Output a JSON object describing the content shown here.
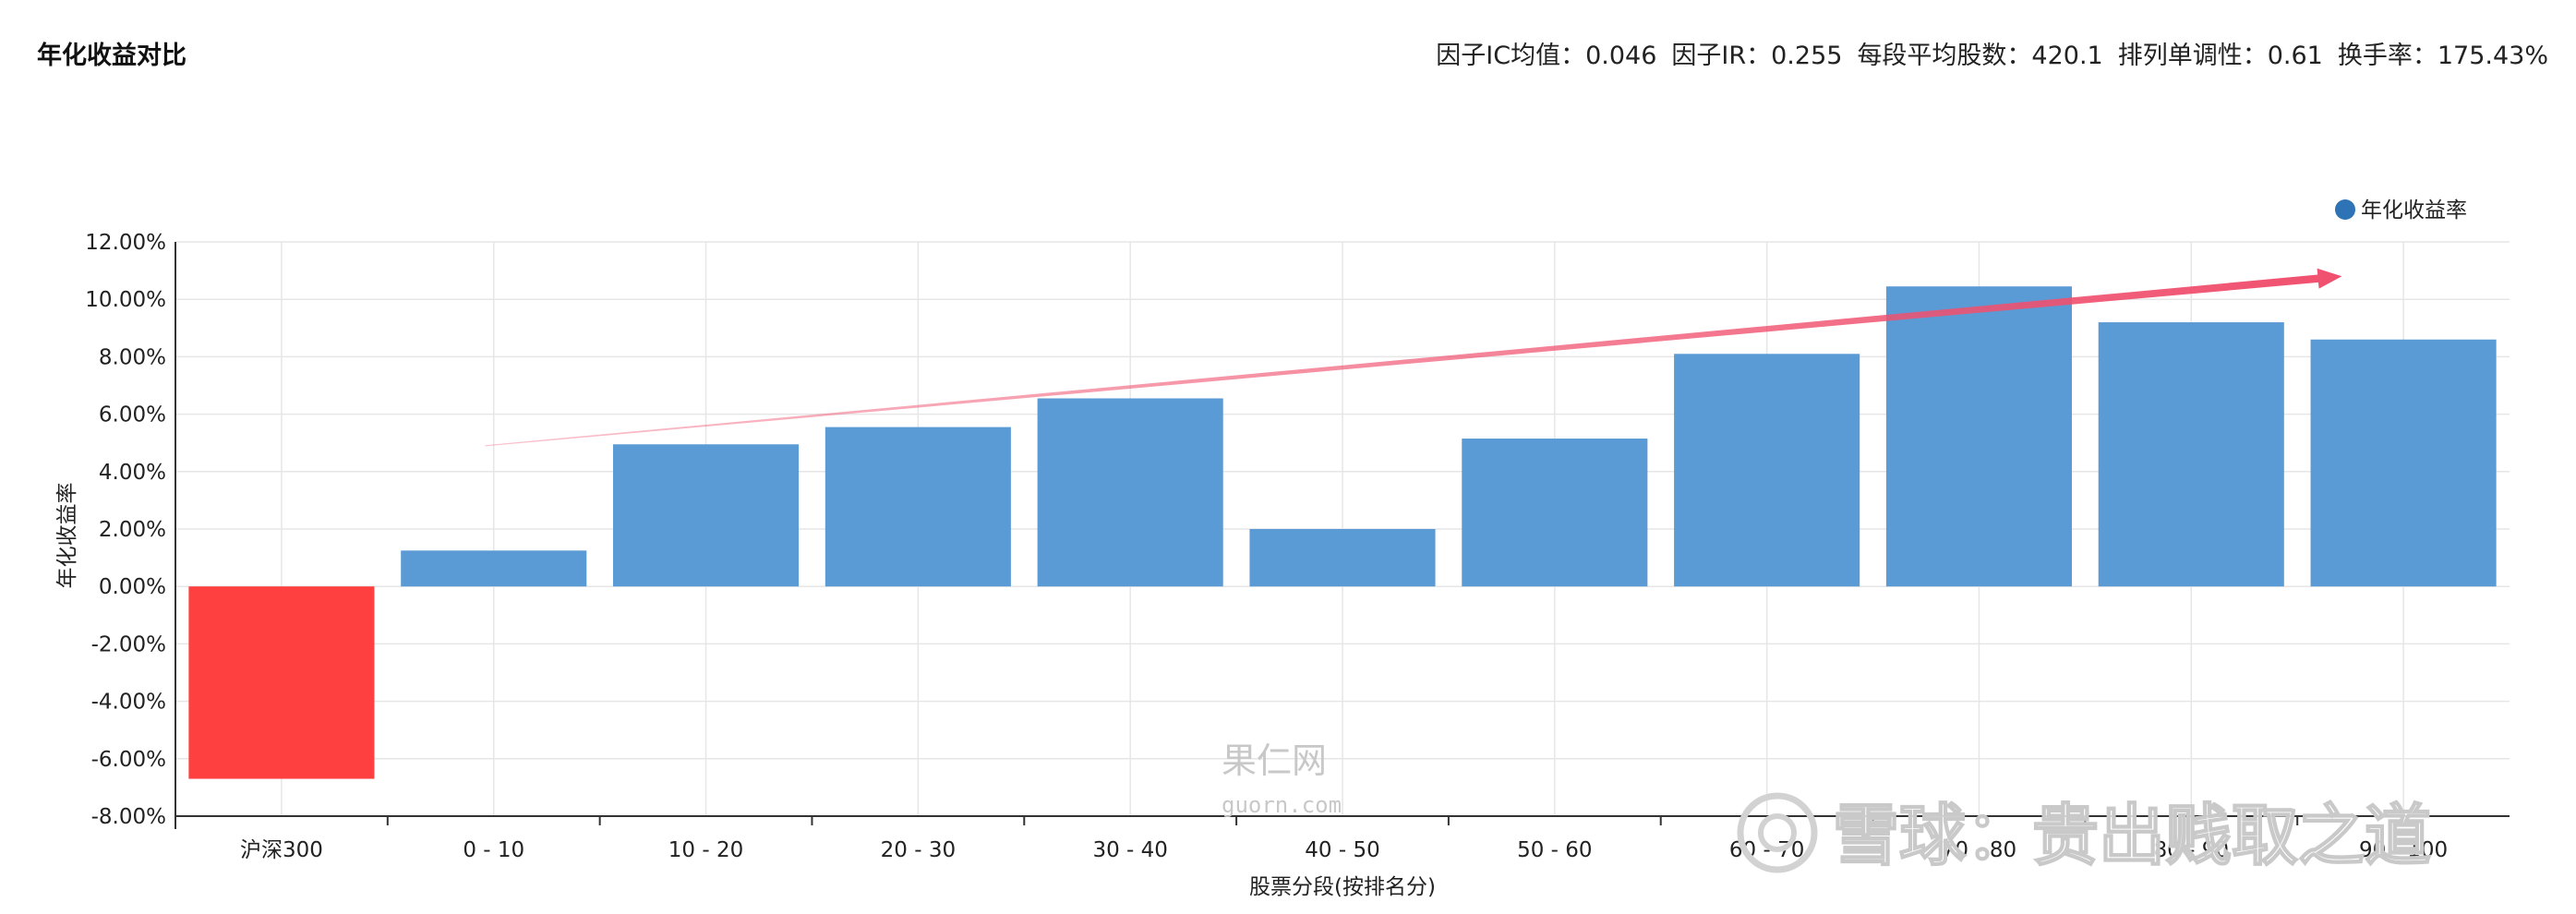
{
  "header": {
    "title": "年化收益对比",
    "stats": [
      "因子IC均值：0.046",
      "因子IR：0.255",
      "每段平均股数：420.1",
      "排列单调性：0.61",
      "换手率：175.43%"
    ]
  },
  "watermarks": {
    "site_name": "果仁网",
    "site_url": "guorn.com",
    "credit": "雪球：贵出贱取之道"
  },
  "colors": {
    "bar": "#5b9bd5",
    "benchmark_bar": "#ff4040",
    "trend_arrow": "#f0506e",
    "grid": "#e6e6e6"
  },
  "chart_data": {
    "type": "bar",
    "title": "年化收益对比",
    "xlabel": "股票分段(按排名分)",
    "ylabel": "年化收益率",
    "categories": [
      "沪深300",
      "0 - 10",
      "10 - 20",
      "20 - 30",
      "30 - 40",
      "40 - 50",
      "50 - 60",
      "60 - 70",
      "70 - 80",
      "80 - 90",
      "90 - 100"
    ],
    "series": [
      {
        "name": "年化收益率",
        "values": [
          -6.7,
          1.25,
          4.95,
          5.55,
          6.55,
          2.0,
          5.15,
          8.1,
          10.45,
          9.2,
          8.6
        ]
      }
    ],
    "highlighted_category": "沪深300",
    "ylim": [
      -8,
      12
    ],
    "yticks": [
      12,
      10,
      8,
      6,
      4,
      2,
      0,
      -2,
      -4,
      -6,
      -8
    ],
    "ytick_labels": [
      "12.00%",
      "10.00%",
      "8.00%",
      "6.00%",
      "4.00%",
      "2.00%",
      "0.00%",
      "-2.00%",
      "-4.00%",
      "-6.00%",
      "-8.00%"
    ],
    "grid": true,
    "legend": "top-right",
    "annotations": [
      {
        "type": "trend-arrow",
        "from": {
          "category": "0 - 10",
          "value": 4.9
        },
        "to": {
          "category": "90 - 100",
          "value": 10.8
        }
      }
    ]
  }
}
